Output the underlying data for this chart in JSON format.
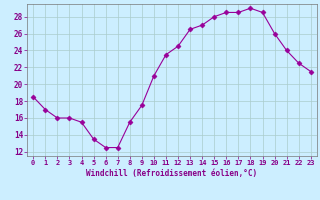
{
  "x": [
    0,
    1,
    2,
    3,
    4,
    5,
    6,
    7,
    8,
    9,
    10,
    11,
    12,
    13,
    14,
    15,
    16,
    17,
    18,
    19,
    20,
    21,
    22,
    23
  ],
  "y": [
    18.5,
    17.0,
    16.0,
    16.0,
    15.5,
    13.5,
    12.5,
    12.5,
    15.5,
    17.5,
    21.0,
    23.5,
    24.5,
    26.5,
    27.0,
    28.0,
    28.5,
    28.5,
    29.0,
    28.5,
    26.0,
    24.0,
    22.5,
    21.5
  ],
  "line_color": "#990099",
  "marker": "D",
  "marker_size": 2.5,
  "background_color": "#cceeff",
  "grid_color": "#aacccc",
  "xlabel": "Windchill (Refroidissement éolien,°C)",
  "xlabel_color": "#880088",
  "tick_color": "#880088",
  "xlim": [
    -0.5,
    23.5
  ],
  "ylim": [
    11.5,
    29.5
  ],
  "yticks": [
    12,
    14,
    16,
    18,
    20,
    22,
    24,
    26,
    28
  ],
  "xticks": [
    0,
    1,
    2,
    3,
    4,
    5,
    6,
    7,
    8,
    9,
    10,
    11,
    12,
    13,
    14,
    15,
    16,
    17,
    18,
    19,
    20,
    21,
    22,
    23
  ],
  "font_family": "monospace"
}
